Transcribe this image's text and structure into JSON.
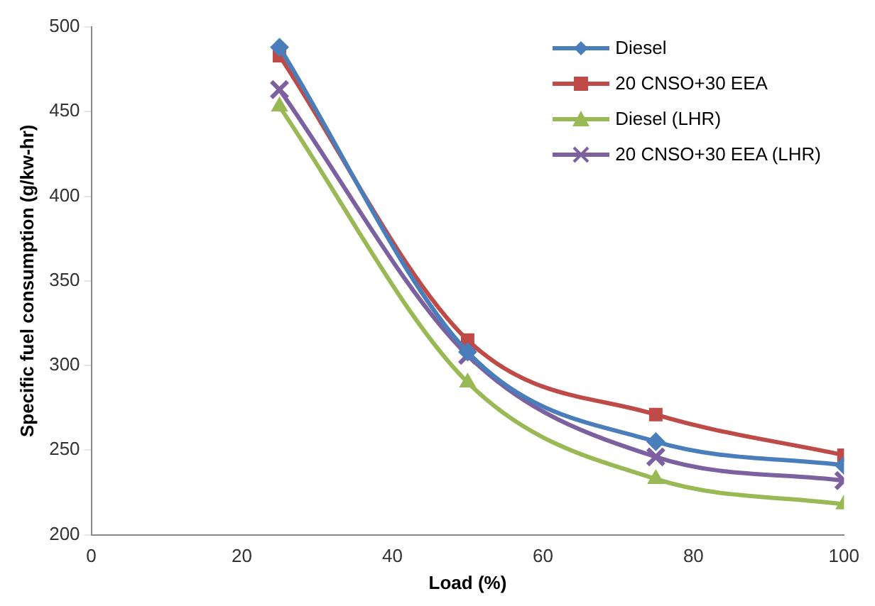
{
  "chart_data": {
    "type": "line",
    "xlabel": "Load (%)",
    "ylabel": "Specific fuel consumption (g/kw-hr)",
    "x": [
      25,
      50,
      75,
      100
    ],
    "series": [
      {
        "name": "Diesel",
        "color": "#4a7ebb",
        "marker": "diamond",
        "values": [
          488,
          308,
          255,
          241
        ]
      },
      {
        "name": "20 CNSO+30 EEA",
        "color": "#be4b48",
        "marker": "square",
        "values": [
          483,
          315,
          271,
          247
        ]
      },
      {
        "name": "Diesel (LHR)",
        "color": "#98b954",
        "marker": "triangle",
        "values": [
          453,
          290,
          233,
          218
        ]
      },
      {
        "name": "20 CNSO+30 EEA (LHR)",
        "color": "#7d60a0",
        "marker": "cross",
        "values": [
          463,
          306,
          246,
          232
        ]
      }
    ],
    "xlim": [
      0,
      100
    ],
    "xticks": [
      0,
      20,
      40,
      60,
      80,
      100
    ],
    "ylim": [
      200,
      500
    ],
    "yticks": [
      200,
      250,
      300,
      350,
      400,
      450,
      500
    ],
    "grid": false,
    "legend": "top right"
  }
}
